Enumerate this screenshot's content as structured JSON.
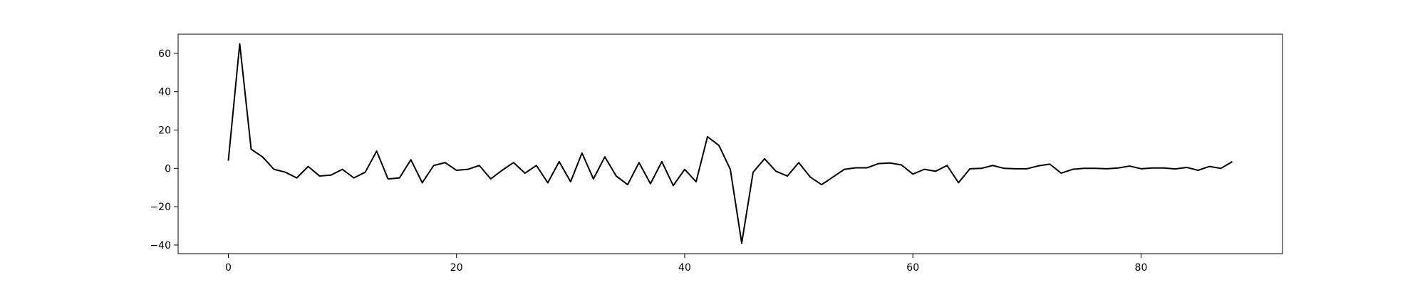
{
  "chart_data": {
    "type": "line",
    "title": "",
    "xlabel": "",
    "ylabel": "",
    "xlim": [
      -4.4,
      92.4
    ],
    "ylim": [
      -44.5,
      70.0
    ],
    "xticks": [
      0,
      20,
      40,
      60,
      80
    ],
    "yticks": [
      -40,
      -20,
      0,
      20,
      40,
      60
    ],
    "grid": false,
    "legend": "none",
    "series": [
      {
        "color": "#000000",
        "x": [
          0,
          1,
          2,
          3,
          4,
          5,
          6,
          7,
          8,
          9,
          10,
          11,
          12,
          13,
          14,
          15,
          16,
          17,
          18,
          19,
          20,
          21,
          22,
          23,
          24,
          25,
          26,
          27,
          28,
          29,
          30,
          31,
          32,
          33,
          34,
          35,
          36,
          37,
          38,
          39,
          40,
          41,
          42,
          43,
          44,
          45,
          46,
          47,
          48,
          49,
          50,
          51,
          52,
          53,
          54,
          55,
          56,
          57,
          58,
          59,
          60,
          61,
          62,
          63,
          64,
          65,
          66,
          67,
          68,
          69,
          70,
          71,
          72,
          73,
          74,
          75,
          76,
          77,
          78,
          79,
          80,
          81,
          82,
          83,
          84,
          85,
          86,
          87,
          88
        ],
        "y": [
          4,
          65,
          10,
          6,
          -0.5,
          -2,
          -5,
          1,
          -4,
          -3.5,
          -0.5,
          -5,
          -2,
          9,
          -5.5,
          -5,
          4.5,
          -7.5,
          1.5,
          3,
          -1,
          -0.5,
          1.5,
          -5.5,
          -1,
          3,
          -2.5,
          1.5,
          -7.5,
          3.5,
          -7,
          8,
          -5.5,
          6,
          -4,
          -8.5,
          3,
          -8,
          3.5,
          -9,
          -0.5,
          -7,
          16.5,
          12,
          -0.5,
          -39,
          -2,
          5,
          -1.5,
          -4,
          3,
          -4.5,
          -8.5,
          -4.5,
          -0.5,
          0.3,
          0.3,
          2.5,
          2.8,
          1.8,
          -3,
          -0.5,
          -1.5,
          1.5,
          -7.5,
          -0.2,
          0,
          1.5,
          0,
          -0.2,
          -0.2,
          1.3,
          2.2,
          -2.5,
          -0.5,
          0,
          0,
          -0.2,
          0.2,
          1.2,
          -0.2,
          0.2,
          0.2,
          -0.3,
          0.5,
          -1,
          1,
          0,
          3.5
        ]
      }
    ]
  }
}
